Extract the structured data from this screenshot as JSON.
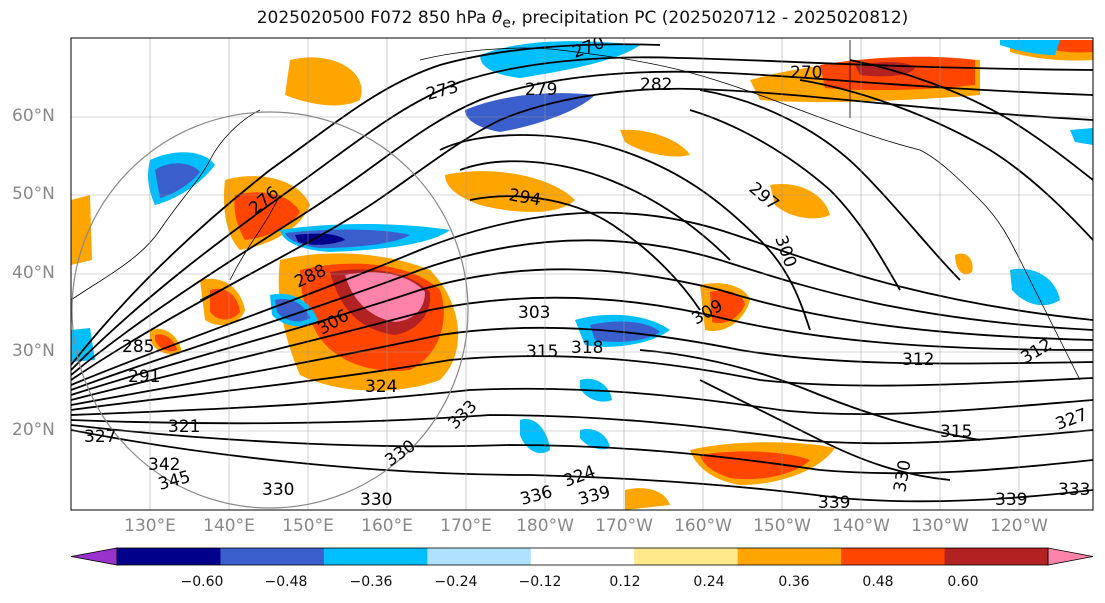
{
  "title": {
    "prefix": "2025020500 F072 850 hPa ",
    "theta": "θ",
    "theta_sub": "e",
    "suffix": ", precipitation PC (2025020712 - 2025020812)"
  },
  "lat_labels": [
    "60°N",
    "50°N",
    "40°N",
    "30°N",
    "20°N"
  ],
  "lon_labels": [
    "130°E",
    "140°E",
    "150°E",
    "160°E",
    "170°E",
    "180°W",
    "170°W",
    "160°W",
    "150°W",
    "140°W",
    "130°W",
    "120°W"
  ],
  "contour_labels": [
    "270",
    "273",
    "276",
    "279",
    "282",
    "285",
    "288",
    "291",
    "294",
    "297",
    "300",
    "303",
    "306",
    "309",
    "312",
    "315",
    "318",
    "321",
    "324",
    "327",
    "330",
    "333",
    "336",
    "339",
    "342",
    "345"
  ],
  "colorbar": {
    "ticks": [
      "−0.60",
      "−0.48",
      "−0.36",
      "−0.24",
      "−0.12",
      "0.12",
      "0.24",
      "0.36",
      "0.48",
      "0.60"
    ],
    "colors": [
      "#9932cc",
      "#00008b",
      "#3a5fcd",
      "#00bfff",
      "#b0e2ff",
      "#ffffff",
      "#ffe98a",
      "#ffa500",
      "#ff4500",
      "#b22222",
      "#ff82ab"
    ]
  },
  "colors": {
    "contour": "#000000",
    "coast": "#000000",
    "grid": "#999999",
    "circle": "#888888"
  }
}
